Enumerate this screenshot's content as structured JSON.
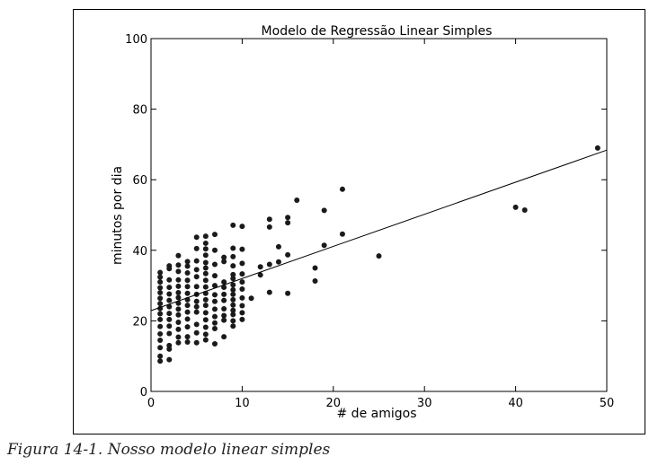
{
  "caption": "Figura 14-1. Nosso modelo linear simples",
  "chart_data": {
    "type": "scatter",
    "title": "Modelo de Regressão Linear Simples",
    "xlabel": "# de amigos",
    "ylabel": "minutos por dia",
    "xlim": [
      0,
      50
    ],
    "ylim": [
      0,
      100
    ],
    "xticks": [
      "0",
      "10",
      "20",
      "30",
      "40",
      "50"
    ],
    "yticks": [
      "0",
      "20",
      "40",
      "60",
      "80",
      "100"
    ],
    "grid": false,
    "point_color": "#1a1a1a",
    "line_color": "#000000",
    "regression_line": {
      "x": [
        0,
        50
      ],
      "y": [
        22.9,
        68.4
      ]
    },
    "series": [
      {
        "points": [
          [
            49,
            69
          ],
          [
            40,
            52.2
          ],
          [
            41,
            51.4
          ],
          [
            25,
            38.4
          ],
          [
            21,
            57.3
          ],
          [
            21,
            44.6
          ],
          [
            19,
            51.3
          ],
          [
            19,
            41.4
          ],
          [
            18,
            35
          ],
          [
            18,
            31.3
          ],
          [
            16,
            54.2
          ],
          [
            15,
            49.3
          ],
          [
            15,
            47.8
          ],
          [
            15,
            38.7
          ],
          [
            15,
            27.8
          ],
          [
            14,
            41
          ],
          [
            14,
            36.7
          ],
          [
            13,
            48.8
          ],
          [
            13,
            46.6
          ],
          [
            13,
            36
          ],
          [
            13,
            28.1
          ],
          [
            12,
            35.3
          ],
          [
            12,
            33
          ],
          [
            11,
            26.4
          ],
          [
            10,
            46.8
          ],
          [
            10,
            40.3
          ],
          [
            10,
            36.3
          ],
          [
            10,
            33.3
          ],
          [
            10,
            31
          ],
          [
            10,
            29
          ],
          [
            10,
            26.5
          ],
          [
            10,
            24.3
          ],
          [
            10,
            22.3
          ],
          [
            10,
            20.4
          ],
          [
            9,
            47.1
          ],
          [
            9,
            40.6
          ],
          [
            9,
            38.2
          ],
          [
            9,
            35.6
          ],
          [
            9,
            33.1
          ],
          [
            9,
            32
          ],
          [
            9,
            30.2
          ],
          [
            9,
            28.8
          ],
          [
            9,
            27.5
          ],
          [
            9,
            26
          ],
          [
            9,
            24.5
          ],
          [
            9,
            23
          ],
          [
            9,
            21.8
          ],
          [
            9,
            20
          ],
          [
            9,
            18.5
          ],
          [
            8,
            38
          ],
          [
            8,
            36.8
          ],
          [
            8,
            31
          ],
          [
            8,
            29.5
          ],
          [
            8,
            27.5
          ],
          [
            8,
            25.8
          ],
          [
            8,
            23.4
          ],
          [
            8,
            21.5
          ],
          [
            8,
            20.2
          ],
          [
            8,
            15.5
          ],
          [
            7,
            44.5
          ],
          [
            7,
            40
          ],
          [
            7,
            36
          ],
          [
            7,
            32.8
          ],
          [
            7,
            30
          ],
          [
            7,
            27.4
          ],
          [
            7,
            25.5
          ],
          [
            7,
            23.3
          ],
          [
            7,
            21.2
          ],
          [
            7,
            19.4
          ],
          [
            7,
            17.8
          ],
          [
            7,
            13.5
          ],
          [
            6,
            44
          ],
          [
            6,
            42
          ],
          [
            6,
            40.4
          ],
          [
            6,
            38.6
          ],
          [
            6,
            36.5
          ],
          [
            6,
            35
          ],
          [
            6,
            33.4
          ],
          [
            6,
            31.5
          ],
          [
            6,
            29.6
          ],
          [
            6,
            27.8
          ],
          [
            6,
            26
          ],
          [
            6,
            24.4
          ],
          [
            6,
            22.3
          ],
          [
            6,
            20.3
          ],
          [
            6,
            18.2
          ],
          [
            6,
            16.2
          ],
          [
            6,
            14.6
          ],
          [
            5,
            43.7
          ],
          [
            5,
            40.5
          ],
          [
            5,
            37
          ],
          [
            5,
            34.5
          ],
          [
            5,
            32.5
          ],
          [
            5,
            29.7
          ],
          [
            5,
            27.5
          ],
          [
            5,
            25.5
          ],
          [
            5,
            24
          ],
          [
            5,
            22.5
          ],
          [
            5,
            19
          ],
          [
            5,
            16.6
          ],
          [
            5,
            13.8
          ],
          [
            4,
            36.8
          ],
          [
            4,
            35.5
          ],
          [
            4,
            33.6
          ],
          [
            4,
            31.5
          ],
          [
            4,
            29.7
          ],
          [
            4,
            27.8
          ],
          [
            4,
            26
          ],
          [
            4,
            24.4
          ],
          [
            4,
            22.5
          ],
          [
            4,
            20.5
          ],
          [
            4,
            18.3
          ],
          [
            4,
            15.5
          ],
          [
            4,
            14
          ],
          [
            3,
            38.5
          ],
          [
            3,
            35.8
          ],
          [
            3,
            34
          ],
          [
            3,
            31.6
          ],
          [
            3,
            29.8
          ],
          [
            3,
            28
          ],
          [
            3,
            26.6
          ],
          [
            3,
            25
          ],
          [
            3,
            23.3
          ],
          [
            3,
            21.7
          ],
          [
            3,
            19.6
          ],
          [
            3,
            17.6
          ],
          [
            3,
            15.4
          ],
          [
            3,
            13.8
          ],
          [
            2,
            35.6
          ],
          [
            2,
            34.8
          ],
          [
            2,
            31.6
          ],
          [
            2,
            29.5
          ],
          [
            2,
            27.6
          ],
          [
            2,
            25.8
          ],
          [
            2,
            24
          ],
          [
            2,
            22.1
          ],
          [
            2,
            20.4
          ],
          [
            2,
            18.5
          ],
          [
            2,
            16.4
          ],
          [
            2,
            13
          ],
          [
            2,
            12
          ],
          [
            2,
            9
          ],
          [
            1,
            33.7
          ],
          [
            1,
            32.4
          ],
          [
            1,
            31
          ],
          [
            1,
            29.4
          ],
          [
            1,
            28
          ],
          [
            1,
            26.4
          ],
          [
            1,
            24.9
          ],
          [
            1,
            23.5
          ],
          [
            1,
            22
          ],
          [
            1,
            20.4
          ],
          [
            1,
            18.4
          ],
          [
            1,
            16.3
          ],
          [
            1,
            14.5
          ],
          [
            1,
            12.4
          ],
          [
            1,
            10
          ],
          [
            1,
            8.6
          ]
        ]
      }
    ]
  }
}
